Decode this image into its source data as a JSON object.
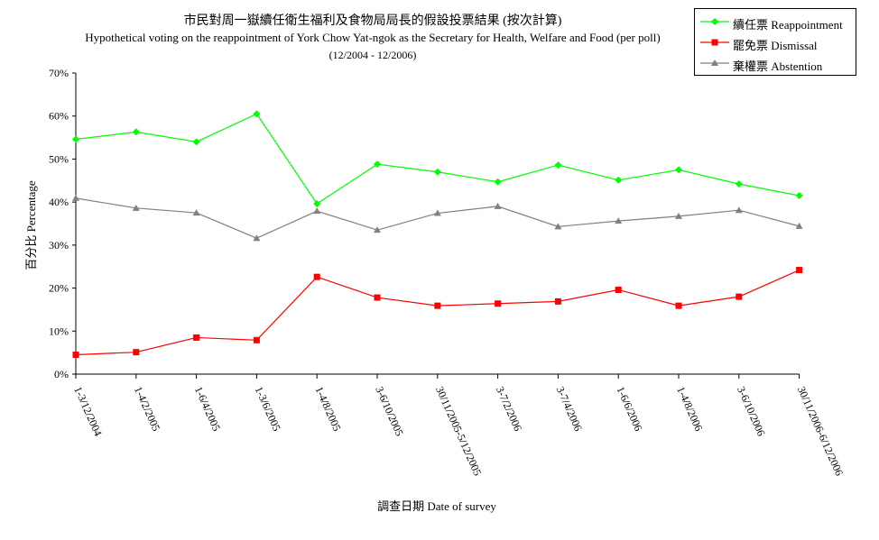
{
  "title": "市民對周一嶽續任衛生福利及食物局局長的假設投票結果 (按次計算)",
  "subtitle": "Hypothetical voting on the reappointment of York Chow Yat-ngok as the Secretary for Health, Welfare and Food (per poll)",
  "period": "(12/2004 - 12/2006)",
  "colors": {
    "reappointment": "#00ff00",
    "dismissal": "#ff0000",
    "abstention": "#808080"
  },
  "chart_data": {
    "type": "line",
    "title": "市民對周一嶽續任衛生福利及食物局局長的假設投票結果 (按次計算)",
    "xlabel": "調查日期 Date of survey",
    "ylabel": "百分比 Percentage",
    "ylim": [
      0,
      70
    ],
    "yticks": [
      "0%",
      "10%",
      "20%",
      "30%",
      "40%",
      "50%",
      "60%",
      "70%"
    ],
    "grid": false,
    "legend_position": "top-right",
    "categories": [
      "1-3/12/2004",
      "1-4/2/2005",
      "1-6/4/2005",
      "1-3/6/2005",
      "1-4/8/2005",
      "3-6/10/2005",
      "30/11/2005-5/12/2005",
      "3-7/2/2006",
      "3-7/4/2006",
      "1-6/6/2006",
      "1-4/8/2006",
      "3-6/10/2006",
      "30/11/2006-6/12/2006"
    ],
    "series": [
      {
        "name": "續任票 Reappointment",
        "marker": "diamond",
        "color": "#00ff00",
        "values": [
          54.6,
          56.3,
          54.0,
          60.5,
          39.6,
          48.8,
          47.0,
          44.7,
          48.6,
          45.1,
          47.5,
          44.2,
          41.5
        ]
      },
      {
        "name": "罷免票 Dismissal",
        "marker": "square",
        "color": "#ff0000",
        "values": [
          4.5,
          5.1,
          8.5,
          7.9,
          22.6,
          17.8,
          15.9,
          16.4,
          16.9,
          19.6,
          15.9,
          18.0,
          24.2
        ]
      },
      {
        "name": "棄權票 Abstention",
        "marker": "triangle",
        "color": "#808080",
        "values": [
          40.9,
          38.6,
          37.5,
          31.6,
          37.9,
          33.5,
          37.4,
          39.0,
          34.3,
          35.6,
          36.7,
          38.1,
          34.4
        ]
      }
    ]
  }
}
